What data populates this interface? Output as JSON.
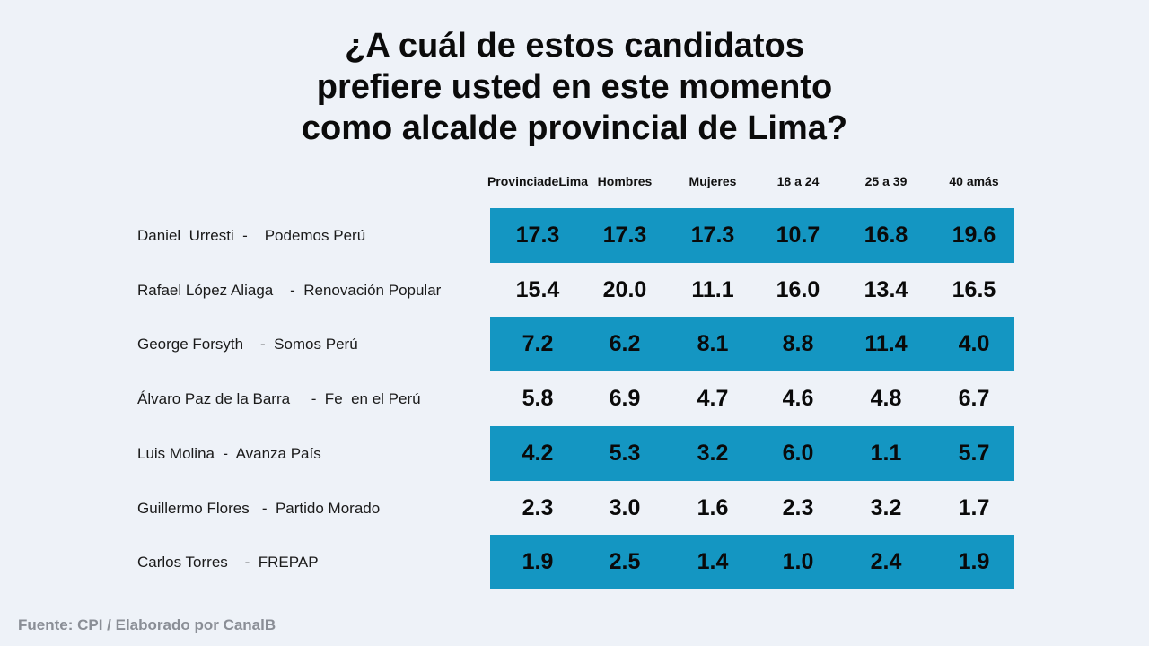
{
  "chart_data": {
    "type": "table",
    "title_lines": [
      "¿A cuál de estos candidatos",
      "prefiere usted en este momento",
      "como alcalde provincial de Lima?"
    ],
    "columns": [
      {
        "lines": [
          "Provinciade",
          "Lima"
        ]
      },
      {
        "lines": [
          "Hombres"
        ]
      },
      {
        "lines": [
          "Mujeres"
        ]
      },
      {
        "lines": [
          "18 a 24"
        ]
      },
      {
        "lines": [
          "25 a 39"
        ]
      },
      {
        "lines": [
          "40 amás"
        ]
      }
    ],
    "rows": [
      {
        "candidate": "Daniel  Urresti  -    Podemos Perú",
        "values": [
          "17.3",
          "17.3",
          "17.3",
          "10.7",
          "16.8",
          "19.6"
        ],
        "highlight": true
      },
      {
        "candidate": "Rafael López Aliaga    -  Renovación Popular",
        "values": [
          "15.4",
          "20.0",
          "11.1",
          "16.0",
          "13.4",
          "16.5"
        ],
        "highlight": false
      },
      {
        "candidate": "George Forsyth    -  Somos Perú",
        "values": [
          "7.2",
          "6.2",
          "8.1",
          "8.8",
          "11.4",
          "4.0"
        ],
        "highlight": true
      },
      {
        "candidate": "Álvaro Paz de la Barra     -  Fe  en el Perú",
        "values": [
          "5.8",
          "6.9",
          "4.7",
          "4.6",
          "4.8",
          "6.7"
        ],
        "highlight": false
      },
      {
        "candidate": "Luis Molina  -  Avanza País",
        "values": [
          "4.2",
          "5.3",
          "3.2",
          "6.0",
          "1.1",
          "5.7"
        ],
        "highlight": true
      },
      {
        "candidate": "Guillermo Flores   -  Partido Morado",
        "values": [
          "2.3",
          "3.0",
          "1.6",
          "2.3",
          "3.2",
          "1.7"
        ],
        "highlight": false
      },
      {
        "candidate": "Carlos Torres    -  FREPAP",
        "values": [
          "1.9",
          "2.5",
          "1.4",
          "1.0",
          "2.4",
          "1.9"
        ],
        "highlight": true
      }
    ],
    "band_color": "#1496c2",
    "source": "Fuente: CPI / Elaborado por CanalB"
  }
}
